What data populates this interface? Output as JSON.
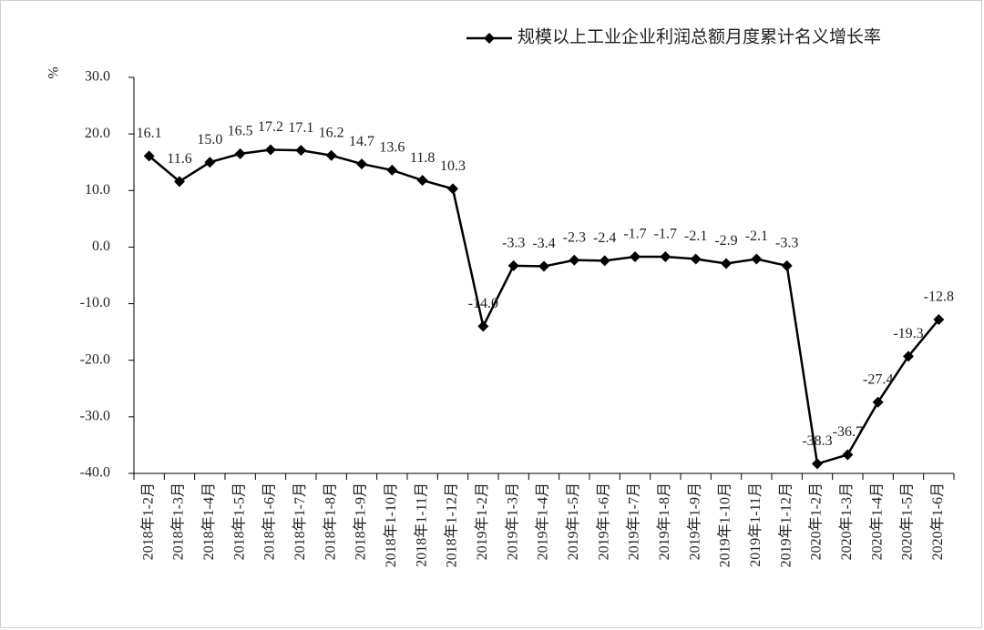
{
  "chart_data": {
    "type": "line",
    "y_label": "%",
    "categories": [
      "2018年1-2月",
      "2018年1-3月",
      "2018年1-4月",
      "2018年1-5月",
      "2018年1-6月",
      "2018年1-7月",
      "2018年1-8月",
      "2018年1-9月",
      "2018年1-10月",
      "2018年1-11月",
      "2018年1-12月",
      "2019年1-2月",
      "2019年1-3月",
      "2019年1-4月",
      "2019年1-5月",
      "2019年1-6月",
      "2019年1-7月",
      "2019年1-8月",
      "2019年1-9月",
      "2019年1-10月",
      "2019年1-11月",
      "2019年1-12月",
      "2020年1-2月",
      "2020年1-3月",
      "2020年1-4月",
      "2020年1-5月",
      "2020年1-6月"
    ],
    "series": [
      {
        "name": "规模以上工业企业利润总额月度累计名义增长率",
        "color": "#000000",
        "values": [
          16.1,
          11.6,
          15.0,
          16.5,
          17.2,
          17.1,
          16.2,
          14.7,
          13.6,
          11.8,
          10.3,
          -14.0,
          -3.3,
          -3.4,
          -2.3,
          -2.4,
          -1.7,
          -1.7,
          -2.1,
          -2.9,
          -2.1,
          -3.3,
          -38.3,
          -36.7,
          -27.4,
          -19.3,
          -12.8
        ],
        "value_labels": [
          "16.1",
          "11.6",
          "15.0",
          "16.5",
          "17.2",
          "17.1",
          "16.2",
          "14.7",
          "13.6",
          "11.8",
          "10.3",
          "-14.0",
          "-3.3",
          "-3.4",
          "-2.3",
          "-2.4",
          "-1.7",
          "-1.7",
          "-2.1",
          "-2.9",
          "-2.1",
          "-3.3",
          "-38.3",
          "-36.7",
          "-27.4",
          "-19.3",
          "-12.8"
        ]
      }
    ],
    "ylim": [
      -40,
      30
    ],
    "yticks": [
      {
        "value": -40,
        "label": "-40.0"
      },
      {
        "value": -30,
        "label": "-30.0"
      },
      {
        "value": -20,
        "label": "-20.0"
      },
      {
        "value": -10,
        "label": "-10.0"
      },
      {
        "value": 0,
        "label": "0.0"
      },
      {
        "value": 10,
        "label": "10.0"
      },
      {
        "value": 20,
        "label": "20.0"
      },
      {
        "value": 30,
        "label": "30.0"
      }
    ],
    "legend": "top-right"
  }
}
